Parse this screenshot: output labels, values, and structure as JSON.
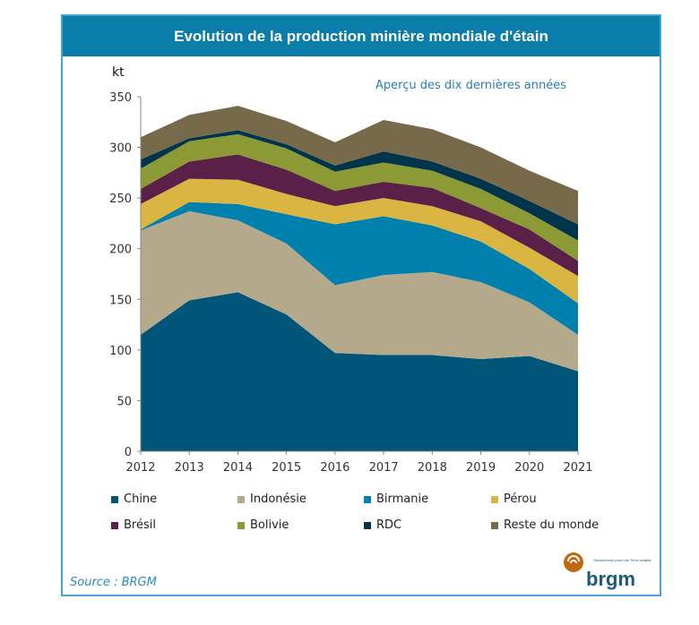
{
  "header": {
    "title": "Evolution de la production minière mondiale  d'étain"
  },
  "source": "Source : BRGM",
  "logo": {
    "text": "brgm",
    "tagline": "Géosciences pour une Terre durable"
  },
  "colors": {
    "header": "#0a7dab",
    "border": "#4aa3cf"
  },
  "chart_data": {
    "type": "area",
    "stacked": true,
    "title": "Evolution de la production minière mondiale  d'étain",
    "subtitle": "Aperçu des dix dernières années",
    "ylabel": "kt",
    "ylim": [
      0,
      350
    ],
    "yticks": [
      0,
      50,
      100,
      150,
      200,
      250,
      300,
      350
    ],
    "x": [
      2012,
      2013,
      2014,
      2015,
      2016,
      2017,
      2018,
      2019,
      2020,
      2021
    ],
    "legend_position": "bottom",
    "grid": false,
    "series": [
      {
        "name": "Chine",
        "color": "#005578",
        "values": [
          115,
          149,
          157,
          135,
          97,
          95,
          95,
          91,
          94,
          79
        ]
      },
      {
        "name": "Indonésie",
        "color": "#b5a98b",
        "values": [
          103,
          88,
          71,
          70,
          67,
          79,
          82,
          76,
          53,
          36
        ]
      },
      {
        "name": "Birmanie",
        "color": "#0080ad",
        "values": [
          1,
          9,
          16,
          29,
          60,
          58,
          46,
          40,
          33,
          31
        ]
      },
      {
        "name": "Pérou",
        "color": "#dbb541",
        "values": [
          25,
          23,
          24,
          20,
          18,
          18,
          19,
          20,
          21,
          27
        ]
      },
      {
        "name": "Brésil",
        "color": "#5b2047",
        "values": [
          15,
          17,
          25,
          24,
          15,
          16,
          18,
          13,
          18,
          15
        ]
      },
      {
        "name": "Bolivie",
        "color": "#8c9a36",
        "values": [
          20,
          20,
          20,
          21,
          19,
          19,
          17,
          19,
          16,
          20
        ]
      },
      {
        "name": "RDC",
        "color": "#00344a",
        "values": [
          9,
          3,
          4,
          4,
          6,
          11,
          9,
          10,
          12,
          16
        ]
      },
      {
        "name": "Reste du monde",
        "color": "#776a4b",
        "values": [
          22,
          23,
          24,
          23,
          23,
          31,
          32,
          31,
          30,
          33
        ]
      }
    ]
  }
}
